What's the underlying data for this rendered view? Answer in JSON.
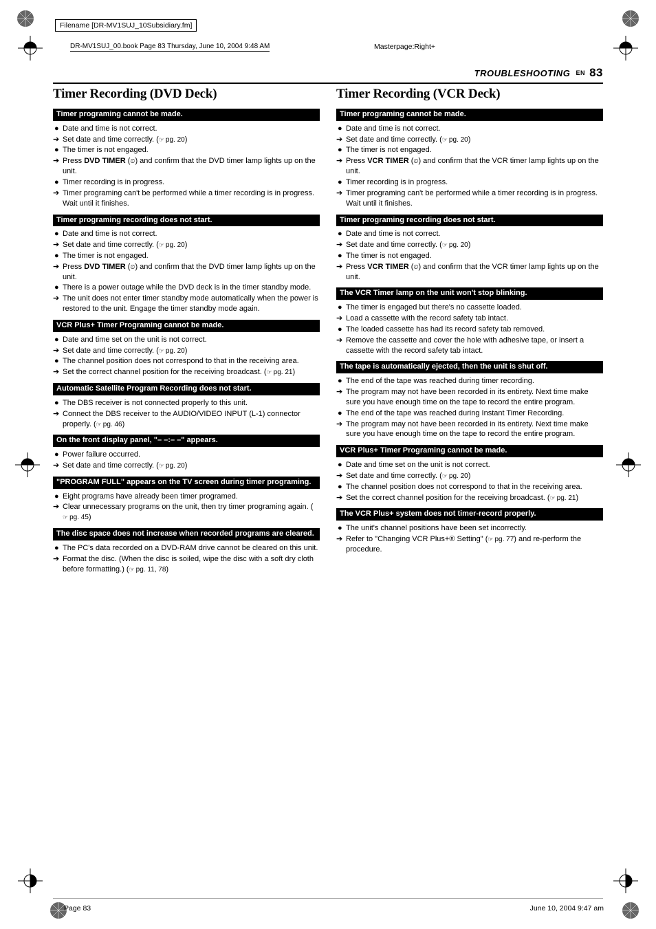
{
  "meta": {
    "filename": "Filename [DR-MV1SUJ_10Subsidiary.fm]",
    "bookinfo": "DR-MV1SUJ_00.book  Page 83  Thursday, June 10, 2004  9:48 AM",
    "masterpage": "Masterpage:Right+",
    "footer_left": "Page 83",
    "footer_right": "June 10, 2004 9:47 am"
  },
  "header": {
    "section": "TROUBLESHOOTING",
    "lang": "EN",
    "page": "83"
  },
  "left": {
    "title": "Timer Recording (DVD Deck)",
    "groups": [
      {
        "heading": "Timer programing cannot be made.",
        "items": [
          {
            "b": "dot",
            "t": "Date and time is not correct."
          },
          {
            "b": "arr",
            "t": "Set date and time correctly. (",
            "ref": "pg. 20",
            "tail": ")"
          },
          {
            "b": "dot",
            "t": "The timer is not engaged."
          },
          {
            "b": "arr",
            "pre": "Press ",
            "bold": "DVD TIMER",
            "post": " (",
            "icon": true,
            "after": ") and confirm that the DVD timer lamp lights up on the unit."
          },
          {
            "b": "dot",
            "t": "Timer recording is in progress."
          },
          {
            "b": "arr",
            "t": "Timer programing can't be performed while a timer recording is in progress. Wait until it finishes."
          }
        ]
      },
      {
        "heading": "Timer programing recording does not start.",
        "items": [
          {
            "b": "dot",
            "t": "Date and time is not correct."
          },
          {
            "b": "arr",
            "t": "Set date and time correctly. (",
            "ref": "pg. 20",
            "tail": ")"
          },
          {
            "b": "dot",
            "t": "The timer is not engaged."
          },
          {
            "b": "arr",
            "pre": "Press ",
            "bold": "DVD TIMER",
            "post": " (",
            "icon": true,
            "after": ") and confirm that the DVD timer lamp lights up on the unit."
          },
          {
            "b": "dot",
            "t": "There is a power outage while the DVD deck is in the timer standby mode."
          },
          {
            "b": "arr",
            "t": "The unit does not enter timer standby mode automatically when the power is restored to the unit. Engage the timer standby mode again."
          }
        ]
      },
      {
        "heading": "VCR Plus+ Timer Programing cannot be made.",
        "items": [
          {
            "b": "dot",
            "t": "Date and time set on the unit is not correct."
          },
          {
            "b": "arr",
            "t": "Set date and time correctly. (",
            "ref": "pg. 20",
            "tail": ")"
          },
          {
            "b": "dot",
            "t": "The channel position does not correspond to that in the receiving area."
          },
          {
            "b": "arr",
            "t": "Set the correct channel position for the receiving broadcast. (",
            "ref": "pg. 21",
            "tail": ")"
          }
        ]
      },
      {
        "heading": "Automatic Satellite Program Recording does not start.",
        "items": [
          {
            "b": "dot",
            "t": "The DBS receiver is not connected properly to this unit."
          },
          {
            "b": "arr",
            "t": "Connect the DBS receiver to the AUDIO/VIDEO INPUT (L-1) connector properly. (",
            "ref": "pg. 46",
            "tail": ")"
          }
        ]
      },
      {
        "heading": "On the front display panel, \"– –:– –\" appears.",
        "items": [
          {
            "b": "dot",
            "t": "Power failure occurred."
          },
          {
            "b": "arr",
            "t": "Set date and time correctly. (",
            "ref": "pg. 20",
            "tail": ")"
          }
        ]
      },
      {
        "heading": "\"PROGRAM FULL\" appears on the TV screen during timer programing.",
        "items": [
          {
            "b": "dot",
            "t": "Eight programs have already been timer programed."
          },
          {
            "b": "arr",
            "t": "Clear unnecessary programs on the unit, then try timer programing again. (",
            "ref": "pg. 45",
            "tail": ")"
          }
        ]
      },
      {
        "heading": "The disc space does not increase when recorded programs are cleared.",
        "items": [
          {
            "b": "dot",
            "t": "The PC's data recorded on a DVD-RAM drive cannot be cleared on this unit."
          },
          {
            "b": "arr",
            "t": "Format the disc. (When the disc is soiled, wipe the disc with a soft dry cloth before formatting.) (",
            "ref": "pg. 11, 78",
            "tail": ")"
          }
        ]
      }
    ]
  },
  "right": {
    "title": "Timer Recording (VCR Deck)",
    "groups": [
      {
        "heading": "Timer programing cannot be made.",
        "items": [
          {
            "b": "dot",
            "t": "Date and time is not correct."
          },
          {
            "b": "arr",
            "t": "Set date and time correctly. (",
            "ref": "pg. 20",
            "tail": ")"
          },
          {
            "b": "dot",
            "t": "The timer is not engaged."
          },
          {
            "b": "arr",
            "pre": "Press ",
            "bold": "VCR TIMER",
            "post": " (",
            "icon": true,
            "after": ") and confirm that the VCR timer lamp lights up on the unit."
          },
          {
            "b": "dot",
            "t": "Timer recording is in progress."
          },
          {
            "b": "arr",
            "t": "Timer programing can't be performed while a timer recording is in progress. Wait until it finishes."
          }
        ]
      },
      {
        "heading": "Timer programing recording does not start.",
        "items": [
          {
            "b": "dot",
            "t": "Date and time is not correct."
          },
          {
            "b": "arr",
            "t": "Set date and time correctly. (",
            "ref": "pg. 20",
            "tail": ")"
          },
          {
            "b": "dot",
            "t": "The timer is not engaged."
          },
          {
            "b": "arr",
            "pre": "Press ",
            "bold": "VCR TIMER",
            "post": " (",
            "icon": true,
            "after": ") and confirm that the VCR timer lamp lights up on the unit."
          }
        ]
      },
      {
        "heading": "The VCR Timer lamp on the unit won't stop blinking.",
        "items": [
          {
            "b": "dot",
            "t": "The timer is engaged but there's no cassette loaded."
          },
          {
            "b": "arr",
            "t": "Load a cassette with the record safety tab intact."
          },
          {
            "b": "dot",
            "t": "The loaded cassette has had its record safety tab removed."
          },
          {
            "b": "arr",
            "t": "Remove the cassette and cover the hole with adhesive tape, or insert a cassette with the record safety tab intact."
          }
        ]
      },
      {
        "heading": "The tape is automatically ejected, then the unit is shut off.",
        "items": [
          {
            "b": "dot",
            "t": "The end of the tape was reached during timer recording."
          },
          {
            "b": "arr",
            "t": "The program may not have been recorded in its entirety. Next time make sure you have enough time on the tape to record the entire program."
          },
          {
            "b": "dot",
            "t": "The end of the tape was reached during Instant Timer Recording."
          },
          {
            "b": "arr",
            "t": "The program may not have been recorded in its entirety. Next time make sure you have enough time on the tape to record the entire program."
          }
        ]
      },
      {
        "heading": "VCR Plus+ Timer Programing cannot be made.",
        "items": [
          {
            "b": "dot",
            "t": "Date and time set on the unit is not correct."
          },
          {
            "b": "arr",
            "t": "Set date and time correctly. (",
            "ref": "pg. 20",
            "tail": ")"
          },
          {
            "b": "dot",
            "t": "The channel position does not correspond to that in the receiving area."
          },
          {
            "b": "arr",
            "t": "Set the correct channel position for the receiving broadcast. (",
            "ref": "pg. 21",
            "tail": ")"
          }
        ]
      },
      {
        "heading": "The VCR Plus+ system does not timer-record properly.",
        "items": [
          {
            "b": "dot",
            "t": "The unit's channel positions have been set incorrectly."
          },
          {
            "b": "arr",
            "t": "Refer to \"Changing VCR Plus+® Setting\" (",
            "ref": "pg. 77",
            "tail": ") and re-perform the procedure."
          }
        ]
      }
    ]
  }
}
